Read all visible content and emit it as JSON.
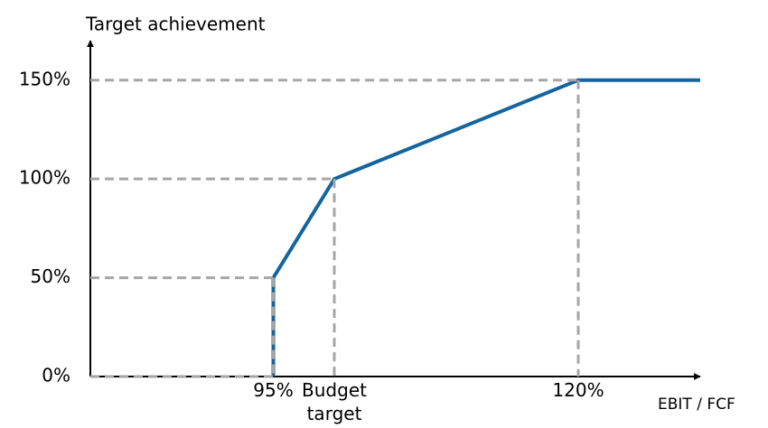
{
  "chart_data": {
    "type": "line",
    "ylabel": "Target achievement",
    "xlabel": "EBIT / FCF",
    "x": [
      95,
      95,
      100,
      120,
      130
    ],
    "series": [
      {
        "color": "#1464a0",
        "values": [
          0,
          50,
          100,
          150,
          150
        ]
      }
    ],
    "xlim": [
      80,
      130
    ],
    "ylim": [
      0,
      170
    ],
    "xticks": [
      {
        "value": 95,
        "label": "95%"
      },
      {
        "value": 100,
        "label": "Budget target"
      },
      {
        "value": 120,
        "label": "120%"
      }
    ],
    "yticks": [
      {
        "value": 0,
        "label": "0%"
      },
      {
        "value": 50,
        "label": "50%"
      },
      {
        "value": 100,
        "label": "100%"
      },
      {
        "value": 150,
        "label": "150%"
      }
    ],
    "grid": false,
    "guides": true
  }
}
